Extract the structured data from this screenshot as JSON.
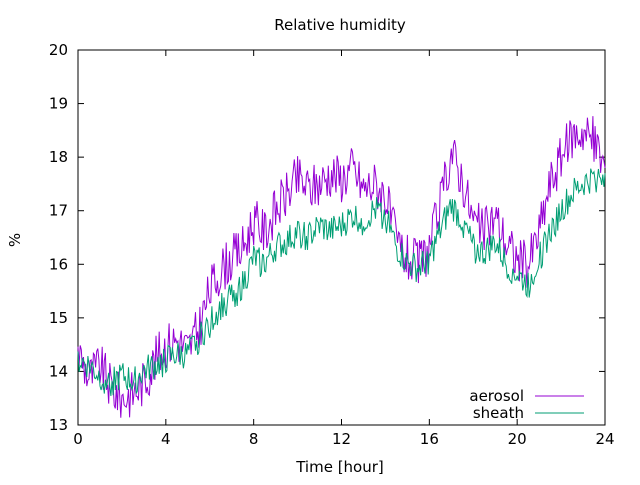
{
  "chart_data": {
    "type": "line",
    "title": "Relative humidity",
    "xlabel": "Time [hour]",
    "ylabel": "%",
    "xlim": [
      0,
      24
    ],
    "ylim": [
      13,
      20
    ],
    "xticks": [
      0,
      4,
      8,
      12,
      16,
      20,
      24
    ],
    "yticks": [
      13,
      14,
      15,
      16,
      17,
      18,
      19,
      20
    ],
    "grid": false,
    "legend_position": "bottom-right",
    "series": [
      {
        "name": "aerosol",
        "color": "#9400d3",
        "x": [
          0,
          0.5,
          1,
          1.5,
          2,
          2.5,
          3,
          3.5,
          4,
          4.5,
          5,
          5.5,
          6,
          6.5,
          7,
          7.5,
          8,
          8.5,
          9,
          9.5,
          10,
          10.5,
          11,
          11.5,
          12,
          12.5,
          13,
          13.5,
          14,
          14.5,
          15,
          15.5,
          16,
          16.5,
          17,
          17.5,
          18,
          18.5,
          19,
          19.5,
          20,
          20.5,
          21,
          21.5,
          22,
          22.5,
          23,
          23.5,
          24
        ],
        "values": [
          14.4,
          13.9,
          14.1,
          13.7,
          13.5,
          13.6,
          13.8,
          14.2,
          14.5,
          14.6,
          14.4,
          14.8,
          15.5,
          15.9,
          16.1,
          16.3,
          16.8,
          16.6,
          17.0,
          17.3,
          17.6,
          17.4,
          17.5,
          17.7,
          17.6,
          17.8,
          17.4,
          17.5,
          17.3,
          16.4,
          16.1,
          16.0,
          16.3,
          17.1,
          18.1,
          17.6,
          16.8,
          16.6,
          16.9,
          16.4,
          16.1,
          16.0,
          16.6,
          17.5,
          18.0,
          18.4,
          18.5,
          18.3,
          17.8
        ]
      },
      {
        "name": "sheath",
        "color": "#009e73",
        "x": [
          0,
          0.5,
          1,
          1.5,
          2,
          2.5,
          3,
          3.5,
          4,
          4.5,
          5,
          5.5,
          6,
          6.5,
          7,
          7.5,
          8,
          8.5,
          9,
          9.5,
          10,
          10.5,
          11,
          11.5,
          12,
          12.5,
          13,
          13.5,
          14,
          14.5,
          15,
          15.5,
          16,
          16.5,
          17,
          17.5,
          18,
          18.5,
          19,
          19.5,
          20,
          20.5,
          21,
          21.5,
          22,
          22.5,
          23,
          23.5,
          24
        ],
        "values": [
          14.2,
          14.1,
          13.9,
          13.8,
          13.9,
          13.8,
          14.0,
          14.1,
          14.2,
          14.3,
          14.3,
          14.6,
          14.9,
          15.2,
          15.4,
          15.6,
          16.1,
          16.0,
          16.3,
          16.4,
          16.6,
          16.5,
          16.7,
          16.6,
          16.7,
          16.9,
          16.8,
          17.0,
          16.9,
          16.3,
          16.0,
          15.9,
          16.1,
          16.6,
          17.1,
          16.8,
          16.3,
          16.2,
          16.4,
          16.0,
          15.8,
          15.6,
          16.1,
          16.6,
          17.0,
          17.3,
          17.5,
          17.6,
          17.7
        ]
      }
    ]
  }
}
